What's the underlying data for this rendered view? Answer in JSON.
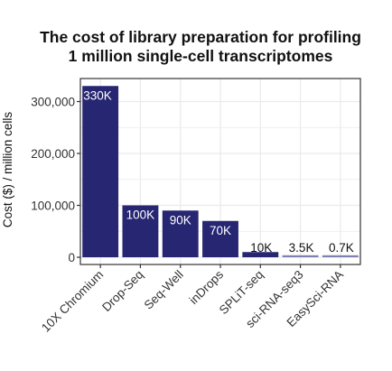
{
  "chart_data": {
    "type": "bar",
    "title_lines": [
      "The cost of library preparation for profiling",
      "1 million single-cell transcriptomes"
    ],
    "xlabel": "",
    "ylabel": "Cost ($) / million cells",
    "ylim": [
      0,
      340000
    ],
    "yticks": [
      0,
      100000,
      200000,
      300000
    ],
    "ytick_labels": [
      "0",
      "100,000",
      "200,000",
      "300,000"
    ],
    "grid": true,
    "bar_color": "#262673",
    "bar_color_light": "#7f7fb2",
    "grid_color": "#ebebeb",
    "categories": [
      "10X Chromium",
      "Drop-Seq",
      "Seq-Well",
      "inDrops",
      "SPLiT-seq",
      "sci-RNA-seq3",
      "EasySci-RNA"
    ],
    "values": [
      330000,
      100000,
      90000,
      70000,
      10000,
      3500,
      700
    ],
    "data_labels": [
      "330K",
      "100K",
      "90K",
      "70K",
      "10K",
      "3.5K",
      "0.7K"
    ],
    "label_inside": [
      true,
      true,
      true,
      true,
      false,
      false,
      false
    ]
  }
}
